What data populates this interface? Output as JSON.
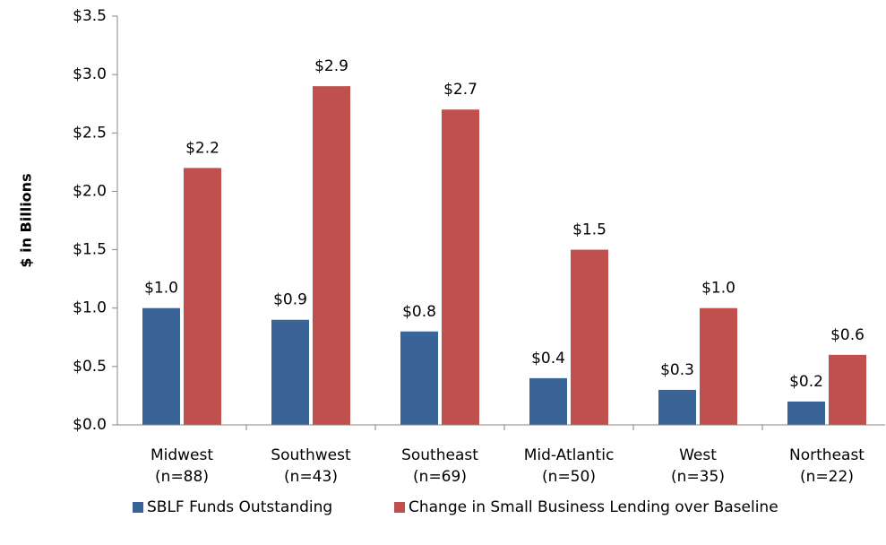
{
  "chart_data": {
    "type": "bar",
    "y_label": "$ in Billions",
    "categories": [
      "Midwest\n(n=88)",
      "Southwest\n(n=43)",
      "Southeast\n(n=69)",
      "Mid-Atlantic\n(n=50)",
      "West\n(n=35)",
      "Northeast\n(n=22)"
    ],
    "series": [
      {
        "name": "SBLF Funds Outstanding",
        "color": "#3a6397",
        "values": [
          1.0,
          0.9,
          0.8,
          0.4,
          0.3,
          0.2
        ],
        "value_labels": [
          "$1.0",
          "$0.9",
          "$0.8",
          "$0.4",
          "$0.3",
          "$0.2"
        ]
      },
      {
        "name": "Change in Small Business Lending over Baseline",
        "color": "#c0504d",
        "values": [
          2.2,
          2.9,
          2.7,
          1.5,
          1.0,
          0.6
        ],
        "value_labels": [
          "$2.2",
          "$2.9",
          "$2.7",
          "$1.5",
          "$1.0",
          "$0.6"
        ]
      }
    ],
    "ylim": [
      0,
      3.5
    ],
    "yticks": [
      {
        "value": 0,
        "label": "$0.0"
      },
      {
        "value": 0.5,
        "label": "$0.5"
      },
      {
        "value": 1.0,
        "label": "$1.0"
      },
      {
        "value": 1.5,
        "label": "$1.5"
      },
      {
        "value": 2.0,
        "label": "$2.0"
      },
      {
        "value": 2.5,
        "label": "$2.5"
      },
      {
        "value": 3.0,
        "label": "$3.0"
      },
      {
        "value": 3.5,
        "label": "$3.5"
      }
    ],
    "grid": false,
    "legend": "bottom"
  }
}
